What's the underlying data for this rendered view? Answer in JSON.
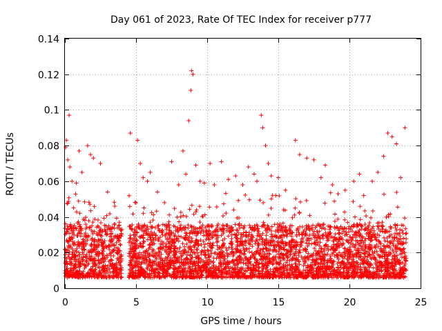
{
  "chart_data": {
    "type": "scatter",
    "title": "Day 061 of 2023, Rate Of TEC Index for receiver p777",
    "xlabel": "GPS time / hours",
    "ylabel": "ROTI / TECUs",
    "xlim": [
      0,
      25
    ],
    "ylim": [
      0,
      0.14
    ],
    "xticks": [
      "0",
      "5",
      "10",
      "15",
      "20",
      "25"
    ],
    "yticks": [
      "0",
      "0.02",
      "0.04",
      "0.06",
      "0.08",
      "0.1",
      "0.12",
      "0.14"
    ],
    "xtick_values": [
      0,
      5,
      10,
      15,
      20,
      25
    ],
    "ytick_values": [
      0,
      0.02,
      0.04,
      0.06,
      0.08,
      0.1,
      0.12,
      0.14
    ],
    "grid": true,
    "marker": "+",
    "color": "#ff0000",
    "series": [
      {
        "name": "ROTI",
        "segments": [
          [
            0,
            4.0
          ],
          [
            4.5,
            24.0
          ]
        ],
        "points": [
          [
            0.05,
            0.079
          ],
          [
            0.1,
            0.083
          ],
          [
            0.2,
            0.072
          ],
          [
            0.3,
            0.097
          ],
          [
            0.35,
            0.068
          ],
          [
            0.5,
            0.06
          ],
          [
            0.8,
            0.059
          ],
          [
            1.0,
            0.077
          ],
          [
            1.2,
            0.065
          ],
          [
            1.6,
            0.08
          ],
          [
            1.8,
            0.075
          ],
          [
            2.0,
            0.073
          ],
          [
            2.5,
            0.07
          ],
          [
            3.0,
            0.054
          ],
          [
            3.5,
            0.046
          ],
          [
            4.6,
            0.087
          ],
          [
            5.1,
            0.083
          ],
          [
            5.3,
            0.07
          ],
          [
            5.5,
            0.062
          ],
          [
            5.8,
            0.06
          ],
          [
            6.0,
            0.065
          ],
          [
            6.5,
            0.054
          ],
          [
            7.0,
            0.048
          ],
          [
            7.5,
            0.071
          ],
          [
            8.0,
            0.058
          ],
          [
            8.3,
            0.077
          ],
          [
            8.5,
            0.064
          ],
          [
            8.7,
            0.094
          ],
          [
            8.85,
            0.111
          ],
          [
            8.9,
            0.122
          ],
          [
            9.0,
            0.12
          ],
          [
            9.2,
            0.069
          ],
          [
            9.5,
            0.06
          ],
          [
            9.8,
            0.059
          ],
          [
            10.2,
            0.07
          ],
          [
            10.5,
            0.058
          ],
          [
            11.0,
            0.071
          ],
          [
            11.5,
            0.061
          ],
          [
            12.0,
            0.063
          ],
          [
            12.5,
            0.058
          ],
          [
            12.9,
            0.068
          ],
          [
            13.3,
            0.064
          ],
          [
            13.5,
            0.06
          ],
          [
            13.8,
            0.097
          ],
          [
            13.9,
            0.09
          ],
          [
            14.1,
            0.08
          ],
          [
            14.3,
            0.07
          ],
          [
            14.5,
            0.063
          ],
          [
            15.0,
            0.062
          ],
          [
            15.5,
            0.055
          ],
          [
            16.2,
            0.083
          ],
          [
            16.5,
            0.075
          ],
          [
            17.0,
            0.073
          ],
          [
            17.5,
            0.072
          ],
          [
            18.0,
            0.062
          ],
          [
            18.3,
            0.069
          ],
          [
            18.8,
            0.058
          ],
          [
            19.2,
            0.053
          ],
          [
            19.7,
            0.055
          ],
          [
            20.3,
            0.06
          ],
          [
            20.7,
            0.064
          ],
          [
            21.0,
            0.052
          ],
          [
            21.6,
            0.06
          ],
          [
            22.0,
            0.065
          ],
          [
            22.4,
            0.074
          ],
          [
            22.7,
            0.087
          ],
          [
            23.0,
            0.085
          ],
          [
            23.3,
            0.081
          ],
          [
            23.6,
            0.062
          ],
          [
            23.9,
            0.09
          ]
        ]
      }
    ]
  }
}
